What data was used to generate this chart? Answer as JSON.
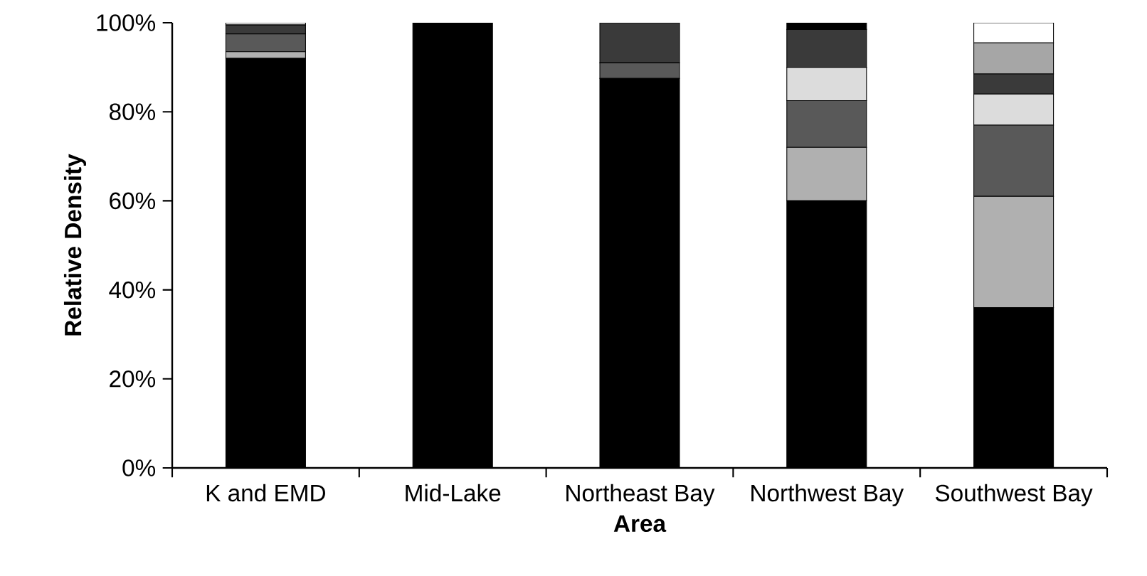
{
  "chart_data": {
    "type": "bar",
    "stacked": true,
    "xlabel": "Area",
    "ylabel": "Relative Density",
    "categories": [
      "K and EMD",
      "Mid-Lake",
      "Northeast Bay",
      "Northwest Bay",
      "Southwest Bay"
    ],
    "series": [
      {
        "color": "#000000",
        "values": [
          92,
          100,
          87.5,
          60,
          36
        ]
      },
      {
        "color": "#b0b0b0",
        "values": [
          1.5,
          0,
          0,
          12,
          25
        ]
      },
      {
        "color": "#595959",
        "values": [
          4,
          0,
          3.5,
          10.5,
          16
        ]
      },
      {
        "color": "#dcdcdc",
        "values": [
          0,
          0,
          0,
          7.5,
          7
        ]
      },
      {
        "color": "#3a3a3a",
        "values": [
          2,
          0,
          9,
          8.5,
          4.5
        ]
      },
      {
        "color": "#a6a6a6",
        "values": [
          0,
          0,
          0,
          0,
          7
        ]
      },
      {
        "color": "#ffffff",
        "values": [
          0.5,
          0,
          0,
          0,
          4.5
        ]
      },
      {
        "color": "#000000",
        "values": [
          0,
          0,
          0,
          1.5,
          0
        ]
      }
    ],
    "ylim": [
      0,
      100
    ],
    "yticks": [
      {
        "value": 0,
        "label": "0%"
      },
      {
        "value": 20,
        "label": "20%"
      },
      {
        "value": 40,
        "label": "40%"
      },
      {
        "value": 60,
        "label": "60%"
      },
      {
        "value": 80,
        "label": "80%"
      },
      {
        "value": 100,
        "label": "100%"
      }
    ]
  }
}
